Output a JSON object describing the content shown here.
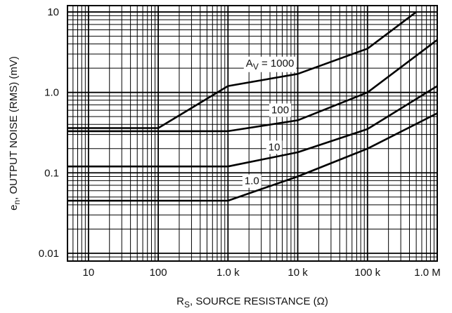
{
  "chart_data": {
    "type": "line",
    "title": "",
    "xlabel": "S",
    "xlabel_prefix": "R",
    "xlabel_suffix": ", SOURCE RESISTANCE (Ω)",
    "ylabel_prefix": "e",
    "ylabel_sub": "n",
    "ylabel_suffix": ", OUTPUT NOISE (RMS) (mV)",
    "x_scale": "log",
    "y_scale": "log",
    "xlim": [
      5,
      1000000
    ],
    "ylim": [
      0.008,
      12
    ],
    "x_ticks": [
      {
        "value": 10,
        "label": "10"
      },
      {
        "value": 100,
        "label": "100"
      },
      {
        "value": 1000,
        "label": "1.0 k"
      },
      {
        "value": 10000,
        "label": "10 k"
      },
      {
        "value": 100000,
        "label": "100 k"
      },
      {
        "value": 1000000,
        "label": "1.0 M"
      }
    ],
    "y_ticks": [
      {
        "value": 10,
        "label": "10"
      },
      {
        "value": 1,
        "label": "1.0"
      },
      {
        "value": 0.1,
        "label": "0.1"
      },
      {
        "value": 0.01,
        "label": "0.01"
      }
    ],
    "grid": true,
    "legend": "none",
    "series": [
      {
        "name": "A_V = 1000",
        "x": [
          5,
          100,
          1000,
          10000,
          100000,
          500000
        ],
        "y": [
          0.36,
          0.36,
          1.2,
          1.7,
          3.5,
          10
        ]
      },
      {
        "name": "100",
        "x": [
          5,
          1000,
          10000,
          100000,
          1000000
        ],
        "y": [
          0.33,
          0.33,
          0.45,
          1.0,
          4.5
        ]
      },
      {
        "name": "10",
        "x": [
          5,
          1000,
          10000,
          100000,
          1000000
        ],
        "y": [
          0.12,
          0.12,
          0.18,
          0.35,
          1.2
        ]
      },
      {
        "name": "1.0",
        "x": [
          5,
          1000,
          10000,
          100000,
          1000000
        ],
        "y": [
          0.045,
          0.045,
          0.09,
          0.2,
          0.55
        ]
      }
    ],
    "annotations": [
      {
        "text_prefix": "A",
        "text_sub": "V",
        "text_suffix": " = 1000",
        "series": 0
      },
      {
        "text": "100",
        "series": 1
      },
      {
        "text": "10",
        "series": 2
      },
      {
        "text": "1.0",
        "series": 3
      }
    ]
  }
}
